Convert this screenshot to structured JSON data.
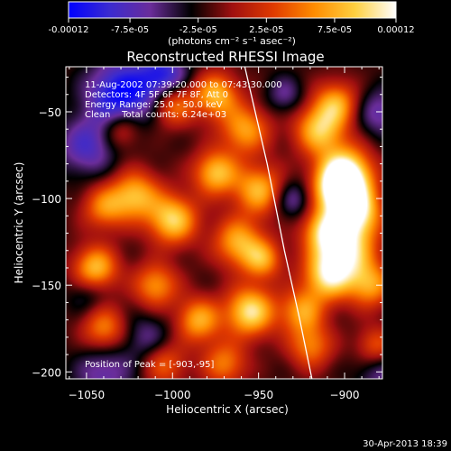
{
  "chart_data": {
    "type": "heatmap",
    "title": "Reconstructed RHESSI Image",
    "xlabel": "Heliocentric X (arcsec)",
    "ylabel": "Heliocentric Y (arcsec)",
    "xlim": [
      -1062,
      -878
    ],
    "ylim": [
      -204,
      -24
    ],
    "x_ticks": [
      -1050,
      -1000,
      -950,
      -900
    ],
    "y_ticks": [
      -50,
      -100,
      -150,
      -200
    ],
    "colorbar": {
      "min": -0.00012,
      "max": 0.00012,
      "ticks": [
        -0.00012,
        -7.5e-05,
        -2.5e-05,
        2.5e-05,
        7.5e-05,
        0.00012
      ],
      "tick_labels": [
        "-0.00012",
        "-7.5e-05",
        "-2.5e-05",
        "2.5e-05",
        "7.5e-05",
        "0.00012"
      ],
      "unit_label": "(photons cm⁻² s⁻¹ asec⁻²)",
      "colormap": [
        "#0000ff",
        "#3b2bd0",
        "#6a2d9a",
        "#000000",
        "#a01010",
        "#e03a00",
        "#ff8c00",
        "#ffd040",
        "#ffffff"
      ]
    },
    "annotations": [
      "11-Aug-2002 07:39:20.000 to 07:43:30.000",
      "Detectors: 4F 5F 6F 7F 8F, Att 0",
      "Energy Range: 25.0 - 50.0 keV",
      "Clean    Total counts: 6.24e+03"
    ],
    "peak_label": "Position of Peak = [-903,-95]",
    "peak": [
      -903,
      -95
    ],
    "limb_curve": [
      [
        -958,
        -24
      ],
      [
        -945,
        -80
      ],
      [
        -935,
        -130
      ],
      [
        -926,
        -170
      ],
      [
        -919,
        -204
      ]
    ],
    "blobs": [
      {
        "x": -975,
        "y": -40,
        "amp": 0.95,
        "r": 9
      },
      {
        "x": -1000,
        "y": -45,
        "amp": 0.8,
        "r": 9
      },
      {
        "x": -958,
        "y": -60,
        "amp": 0.85,
        "r": 10
      },
      {
        "x": -975,
        "y": -85,
        "amp": 1.0,
        "r": 9
      },
      {
        "x": -1022,
        "y": -98,
        "amp": 0.95,
        "r": 10
      },
      {
        "x": -1000,
        "y": -112,
        "amp": 1.1,
        "r": 10
      },
      {
        "x": -1040,
        "y": -105,
        "amp": 0.7,
        "r": 9
      },
      {
        "x": -950,
        "y": -95,
        "amp": 0.95,
        "r": 10
      },
      {
        "x": -962,
        "y": -125,
        "amp": 0.9,
        "r": 10
      },
      {
        "x": -948,
        "y": -135,
        "amp": 0.8,
        "r": 8
      },
      {
        "x": -1045,
        "y": -140,
        "amp": 1.0,
        "r": 9
      },
      {
        "x": -1010,
        "y": -150,
        "amp": 0.8,
        "r": 9
      },
      {
        "x": -985,
        "y": -170,
        "amp": 0.9,
        "r": 9
      },
      {
        "x": -955,
        "y": -165,
        "amp": 1.2,
        "r": 10
      },
      {
        "x": -1040,
        "y": -175,
        "amp": 0.75,
        "r": 9
      },
      {
        "x": -1005,
        "y": -195,
        "amp": 0.6,
        "r": 9
      },
      {
        "x": -970,
        "y": -195,
        "amp": 0.7,
        "r": 9
      },
      {
        "x": -915,
        "y": -60,
        "amp": 1.0,
        "r": 10
      },
      {
        "x": -905,
        "y": -45,
        "amp": 0.85,
        "r": 9
      },
      {
        "x": -900,
        "y": -85,
        "amp": 1.25,
        "r": 11
      },
      {
        "x": -903,
        "y": -95,
        "amp": 1.3,
        "r": 10
      },
      {
        "x": -893,
        "y": -108,
        "amp": 1.1,
        "r": 10
      },
      {
        "x": -900,
        "y": -130,
        "amp": 1.2,
        "r": 12
      },
      {
        "x": -910,
        "y": -145,
        "amp": 1.0,
        "r": 10
      },
      {
        "x": -912,
        "y": -118,
        "amp": 0.9,
        "r": 9
      },
      {
        "x": -925,
        "y": -165,
        "amp": 0.8,
        "r": 9
      },
      {
        "x": -920,
        "y": -185,
        "amp": 0.7,
        "r": 9
      },
      {
        "x": -885,
        "y": -150,
        "amp": 0.8,
        "r": 9
      },
      {
        "x": -882,
        "y": -185,
        "amp": 0.6,
        "r": 8
      },
      {
        "x": -1030,
        "y": -60,
        "amp": 0.6,
        "r": 8
      },
      {
        "x": -1030,
        "y": -40,
        "amp": -1.0,
        "r": 14
      },
      {
        "x": -1005,
        "y": -30,
        "amp": -0.8,
        "r": 10
      },
      {
        "x": -1050,
        "y": -70,
        "amp": -0.6,
        "r": 12
      },
      {
        "x": -1040,
        "y": -200,
        "amp": -0.5,
        "r": 12
      },
      {
        "x": -1015,
        "y": -180,
        "amp": -0.4,
        "r": 10
      },
      {
        "x": -930,
        "y": -100,
        "amp": -0.5,
        "r": 8
      },
      {
        "x": -880,
        "y": -50,
        "amp": -0.5,
        "r": 10
      },
      {
        "x": -935,
        "y": -40,
        "amp": -0.4,
        "r": 8
      },
      {
        "x": -880,
        "y": -200,
        "amp": -0.4,
        "r": 10
      },
      {
        "x": -1050,
        "y": -155,
        "amp": -0.3,
        "r": 8
      }
    ]
  },
  "footer": {
    "timestamp": "30-Apr-2013 18:39"
  }
}
